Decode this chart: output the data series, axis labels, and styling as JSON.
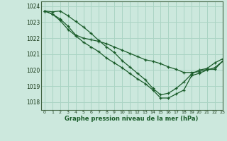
{
  "title": "Graphe pression niveau de la mer (hPa)",
  "bg_color": "#cce8dd",
  "grid_color": "#aad4c4",
  "line_color": "#1a5c2a",
  "xlim": [
    -0.5,
    23
  ],
  "ylim": [
    1017.5,
    1024.3
  ],
  "yticks": [
    1018,
    1019,
    1020,
    1021,
    1022,
    1023,
    1024
  ],
  "xticks": [
    0,
    1,
    2,
    3,
    4,
    5,
    6,
    7,
    8,
    9,
    10,
    11,
    12,
    13,
    14,
    15,
    16,
    17,
    18,
    19,
    20,
    21,
    22,
    23
  ],
  "series": [
    [
      1023.7,
      1023.65,
      1023.7,
      1023.4,
      1023.05,
      1022.7,
      1022.3,
      1021.85,
      1021.45,
      1021.1,
      1020.6,
      1020.2,
      1019.8,
      1019.4,
      1018.85,
      1018.45,
      1018.55,
      1018.85,
      1019.25,
      1019.75,
      1020.0,
      1020.1,
      1020.45,
      1020.7
    ],
    [
      1023.7,
      1023.5,
      1023.1,
      1022.55,
      1022.15,
      1021.75,
      1021.45,
      1021.15,
      1020.75,
      1020.45,
      1020.15,
      1019.8,
      1019.45,
      1019.15,
      1018.75,
      1018.25,
      1018.25,
      1018.5,
      1018.75,
      1019.65,
      1019.8,
      1020.0,
      1020.15,
      1020.55
    ],
    [
      1023.7,
      1023.5,
      1023.2,
      1022.75,
      1022.2,
      1022.0,
      1021.9,
      1021.8,
      1021.65,
      1021.45,
      1021.25,
      1021.05,
      1020.85,
      1020.65,
      1020.55,
      1020.4,
      1020.2,
      1020.05,
      1019.85,
      1019.85,
      1019.9,
      1020.05,
      1020.05,
      1020.55
    ]
  ]
}
